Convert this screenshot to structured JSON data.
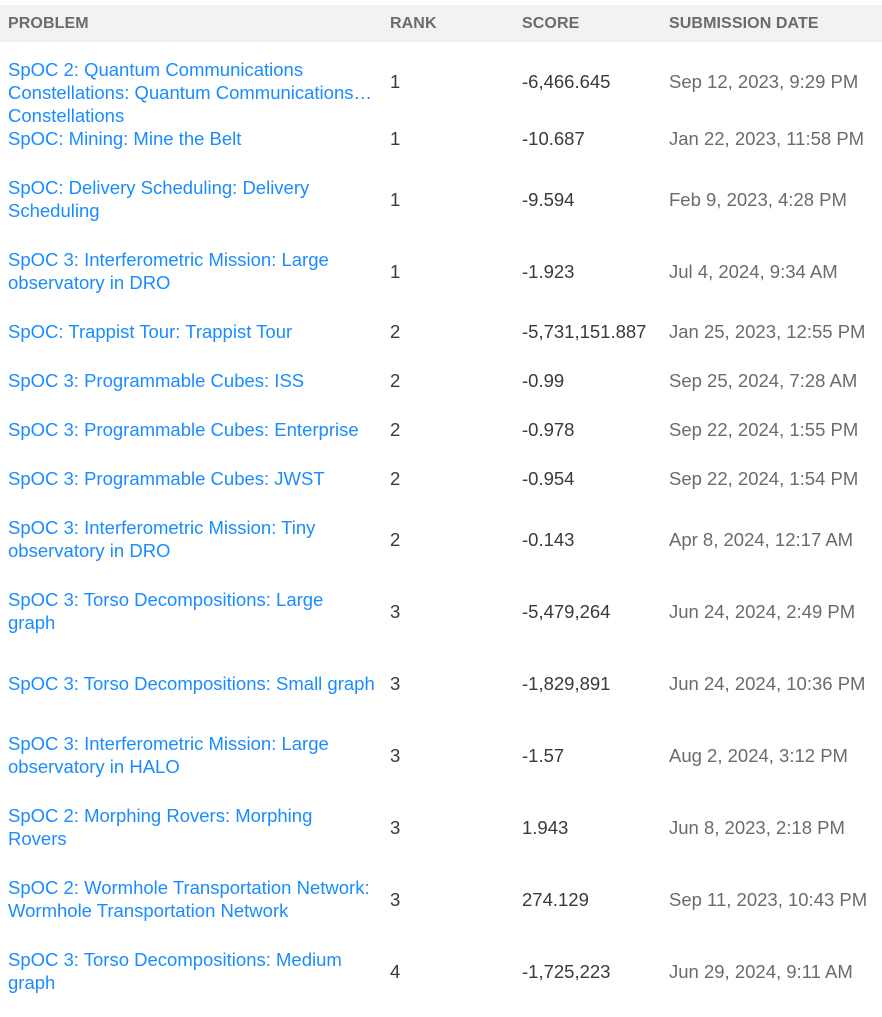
{
  "headers": {
    "problem": "PROBLEM",
    "rank": "RANK",
    "score": "SCORE",
    "date": "SUBMISSION DATE"
  },
  "rows": [
    {
      "problem": "SpOC 2: Quantum Communications Constellations: Quantum Communications Constellations",
      "rank": "1",
      "score": "-6,466.645",
      "date": "Sep 12, 2023, 9:29 PM"
    },
    {
      "problem": "SpOC: Mining: Mine the Belt",
      "rank": "1",
      "score": "-10.687",
      "date": "Jan 22, 2023, 11:58 PM"
    },
    {
      "problem": "SpOC: Delivery Scheduling: Delivery Scheduling",
      "rank": "1",
      "score": "-9.594",
      "date": "Feb 9, 2023, 4:28 PM"
    },
    {
      "problem": "SpOC 3: Interferometric Mission: Large observatory in DRO",
      "rank": "1",
      "score": "-1.923",
      "date": "Jul 4, 2024, 9:34 AM"
    },
    {
      "problem": "SpOC: Trappist Tour: Trappist Tour",
      "rank": "2",
      "score": "-5,731,151.887",
      "date": "Jan 25, 2023, 12:55 PM"
    },
    {
      "problem": "SpOC 3: Programmable Cubes: ISS",
      "rank": "2",
      "score": "-0.99",
      "date": "Sep 25, 2024, 7:28 AM"
    },
    {
      "problem": "SpOC 3: Programmable Cubes: Enterprise",
      "rank": "2",
      "score": "-0.978",
      "date": "Sep 22, 2024, 1:55 PM"
    },
    {
      "problem": "SpOC 3: Programmable Cubes: JWST",
      "rank": "2",
      "score": "-0.954",
      "date": "Sep 22, 2024, 1:54 PM"
    },
    {
      "problem": "SpOC 3: Interferometric Mission: Tiny observatory in DRO",
      "rank": "2",
      "score": "-0.143",
      "date": "Apr 8, 2024, 12:17 AM"
    },
    {
      "problem": "SpOC 3: Torso Decompositions: Large graph",
      "rank": "3",
      "score": "-5,479,264",
      "date": "Jun 24, 2024, 2:49 PM"
    },
    {
      "problem": "SpOC 3: Torso Decompositions: Small graph",
      "rank": "3",
      "score": "-1,829,891",
      "date": "Jun 24, 2024, 10:36 PM"
    },
    {
      "problem": "SpOC 3: Interferometric Mission: Large observatory in HALO",
      "rank": "3",
      "score": "-1.57",
      "date": "Aug 2, 2024, 3:12 PM"
    },
    {
      "problem": "SpOC 2: Morphing Rovers: Morphing Rovers",
      "rank": "3",
      "score": "1.943",
      "date": "Jun 8, 2023, 2:18 PM"
    },
    {
      "problem": "SpOC 2: Wormhole Transportation Network: Wormhole Transportation Network",
      "rank": "3",
      "score": "274.129",
      "date": "Sep 11, 2023, 10:43 PM"
    },
    {
      "problem": "SpOC 3: Torso Decompositions: Medium graph",
      "rank": "4",
      "score": "-1,725,223",
      "date": "Jun 29, 2024, 9:11 AM"
    }
  ]
}
